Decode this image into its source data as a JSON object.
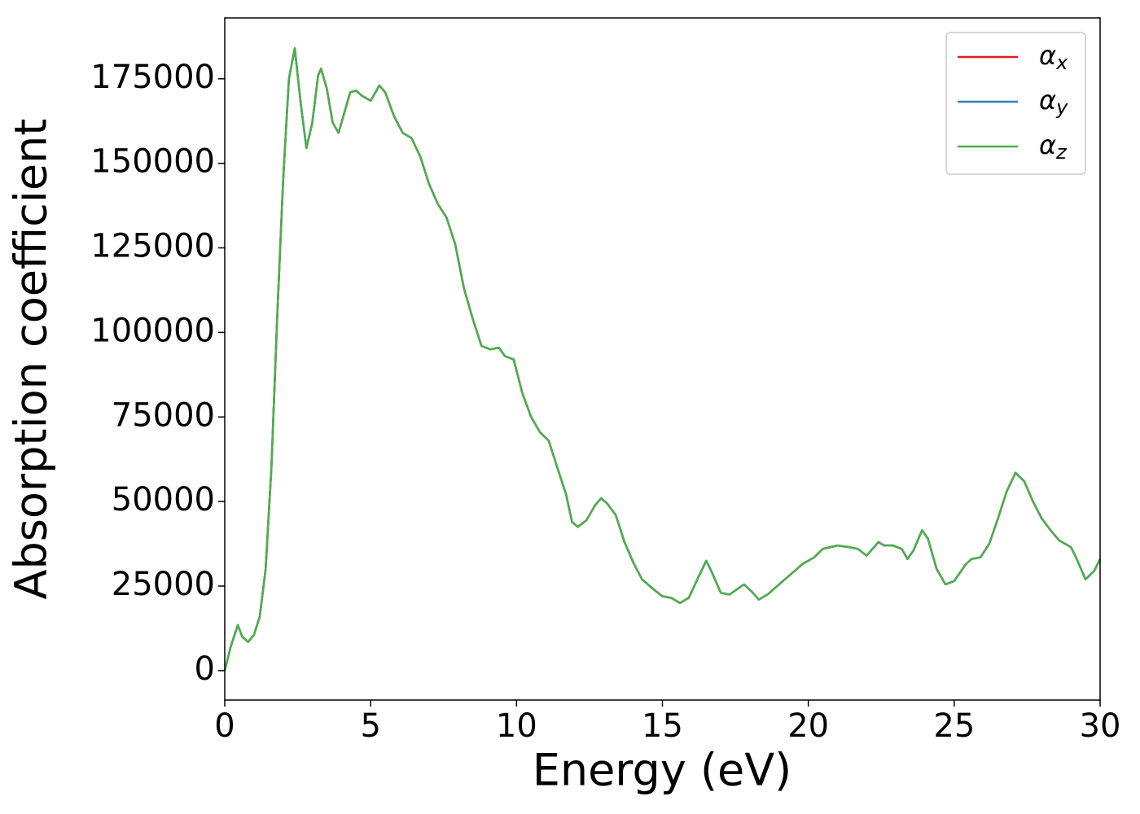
{
  "chart_data": {
    "type": "line",
    "xlabel": "Energy (eV)",
    "ylabel": "Absorption coefficient",
    "x": [
      0,
      0.2,
      0.45,
      0.6,
      0.8,
      1.0,
      1.2,
      1.4,
      1.6,
      1.8,
      2.0,
      2.2,
      2.4,
      2.6,
      2.8,
      3.0,
      3.2,
      3.3,
      3.5,
      3.7,
      3.9,
      4.1,
      4.3,
      4.5,
      4.7,
      5.0,
      5.3,
      5.5,
      5.8,
      6.1,
      6.4,
      6.7,
      7.0,
      7.3,
      7.6,
      7.9,
      8.2,
      8.5,
      8.8,
      9.1,
      9.4,
      9.6,
      9.9,
      10.2,
      10.5,
      10.8,
      11.1,
      11.4,
      11.7,
      11.9,
      12.1,
      12.4,
      12.7,
      12.9,
      13.1,
      13.4,
      13.7,
      14.0,
      14.3,
      14.7,
      15.0,
      15.3,
      15.6,
      15.9,
      16.2,
      16.5,
      16.7,
      17.0,
      17.3,
      17.8,
      18.1,
      18.3,
      18.6,
      19.0,
      19.4,
      19.8,
      20.2,
      20.5,
      21.0,
      21.4,
      21.7,
      22.0,
      22.4,
      22.6,
      22.9,
      23.2,
      23.4,
      23.6,
      23.9,
      24.1,
      24.4,
      24.7,
      25.0,
      25.4,
      25.6,
      25.9,
      26.2,
      26.5,
      26.8,
      27.1,
      27.4,
      27.7,
      28.0,
      28.3,
      28.6,
      29.0,
      29.2,
      29.5,
      29.8,
      30.0
    ],
    "series": [
      {
        "name": "αx",
        "color": "#e41a1c",
        "values": [
          0,
          7000,
          13500,
          10000,
          8500,
          10500,
          16000,
          30000,
          60000,
          105000,
          145000,
          175000,
          184000,
          168000,
          154500,
          162000,
          176000,
          178000,
          172000,
          162000,
          159000,
          165000,
          171000,
          171500,
          170000,
          168500,
          173000,
          171000,
          164000,
          159000,
          157500,
          152000,
          144000,
          138000,
          134000,
          126000,
          113000,
          104000,
          96000,
          95000,
          95500,
          93000,
          92000,
          82000,
          75000,
          70500,
          68000,
          60000,
          52000,
          44000,
          42500,
          44500,
          49000,
          51000,
          49500,
          46000,
          38000,
          32000,
          27000,
          24000,
          22000,
          21500,
          20000,
          21500,
          27000,
          32500,
          29000,
          23000,
          22500,
          25500,
          23000,
          21000,
          22500,
          25500,
          28500,
          31500,
          33500,
          36000,
          37000,
          36500,
          36000,
          34000,
          38000,
          37000,
          37000,
          36000,
          33000,
          35500,
          41500,
          39000,
          30000,
          25500,
          26500,
          31500,
          33000,
          33500,
          37500,
          45000,
          53000,
          58500,
          56000,
          50000,
          45000,
          41500,
          38500,
          36500,
          33000,
          27000,
          29500,
          33000
        ]
      },
      {
        "name": "αy",
        "color": "#377eb8",
        "values": [
          0,
          7000,
          13500,
          10000,
          8500,
          10500,
          16000,
          30000,
          60000,
          105000,
          145000,
          175000,
          184000,
          168000,
          154500,
          162000,
          176000,
          178000,
          172000,
          162000,
          159000,
          165000,
          171000,
          171500,
          170000,
          168500,
          173000,
          171000,
          164000,
          159000,
          157500,
          152000,
          144000,
          138000,
          134000,
          126000,
          113000,
          104000,
          96000,
          95000,
          95500,
          93000,
          92000,
          82000,
          75000,
          70500,
          68000,
          60000,
          52000,
          44000,
          42500,
          44500,
          49000,
          51000,
          49500,
          46000,
          38000,
          32000,
          27000,
          24000,
          22000,
          21500,
          20000,
          21500,
          27000,
          32500,
          29000,
          23000,
          22500,
          25500,
          23000,
          21000,
          22500,
          25500,
          28500,
          31500,
          33500,
          36000,
          37000,
          36500,
          36000,
          34000,
          38000,
          37000,
          37000,
          36000,
          33000,
          35500,
          41500,
          39000,
          30000,
          25500,
          26500,
          31500,
          33000,
          33500,
          37500,
          45000,
          53000,
          58500,
          56000,
          50000,
          45000,
          41500,
          38500,
          36500,
          33000,
          27000,
          29500,
          33000
        ]
      },
      {
        "name": "αz",
        "color": "#4daf4a",
        "values": [
          0,
          7000,
          13500,
          10000,
          8500,
          10500,
          16000,
          30000,
          60000,
          105000,
          145000,
          175000,
          184000,
          168000,
          154500,
          162000,
          176000,
          178000,
          172000,
          162000,
          159000,
          165000,
          171000,
          171500,
          170000,
          168500,
          173000,
          171000,
          164000,
          159000,
          157500,
          152000,
          144000,
          138000,
          134000,
          126000,
          113000,
          104000,
          96000,
          95000,
          95500,
          93000,
          92000,
          82000,
          75000,
          70500,
          68000,
          60000,
          52000,
          44000,
          42500,
          44500,
          49000,
          51000,
          49500,
          46000,
          38000,
          32000,
          27000,
          24000,
          22000,
          21500,
          20000,
          21500,
          27000,
          32500,
          29000,
          23000,
          22500,
          25500,
          23000,
          21000,
          22500,
          25500,
          28500,
          31500,
          33500,
          36000,
          37000,
          36500,
          36000,
          34000,
          38000,
          37000,
          37000,
          36000,
          33000,
          35500,
          41500,
          39000,
          30000,
          25500,
          26500,
          31500,
          33000,
          33500,
          37500,
          45000,
          53000,
          58500,
          56000,
          50000,
          45000,
          41500,
          38500,
          36500,
          33000,
          27000,
          29500,
          33000
        ]
      }
    ],
    "xlim": [
      0,
      30
    ],
    "xticks": [
      0,
      5,
      10,
      15,
      20,
      25,
      30
    ],
    "ylim": [
      -8700,
      193000
    ],
    "yticks": [
      0,
      25000,
      50000,
      75000,
      100000,
      125000,
      150000,
      175000
    ],
    "grid": false,
    "legend": "upper right"
  }
}
